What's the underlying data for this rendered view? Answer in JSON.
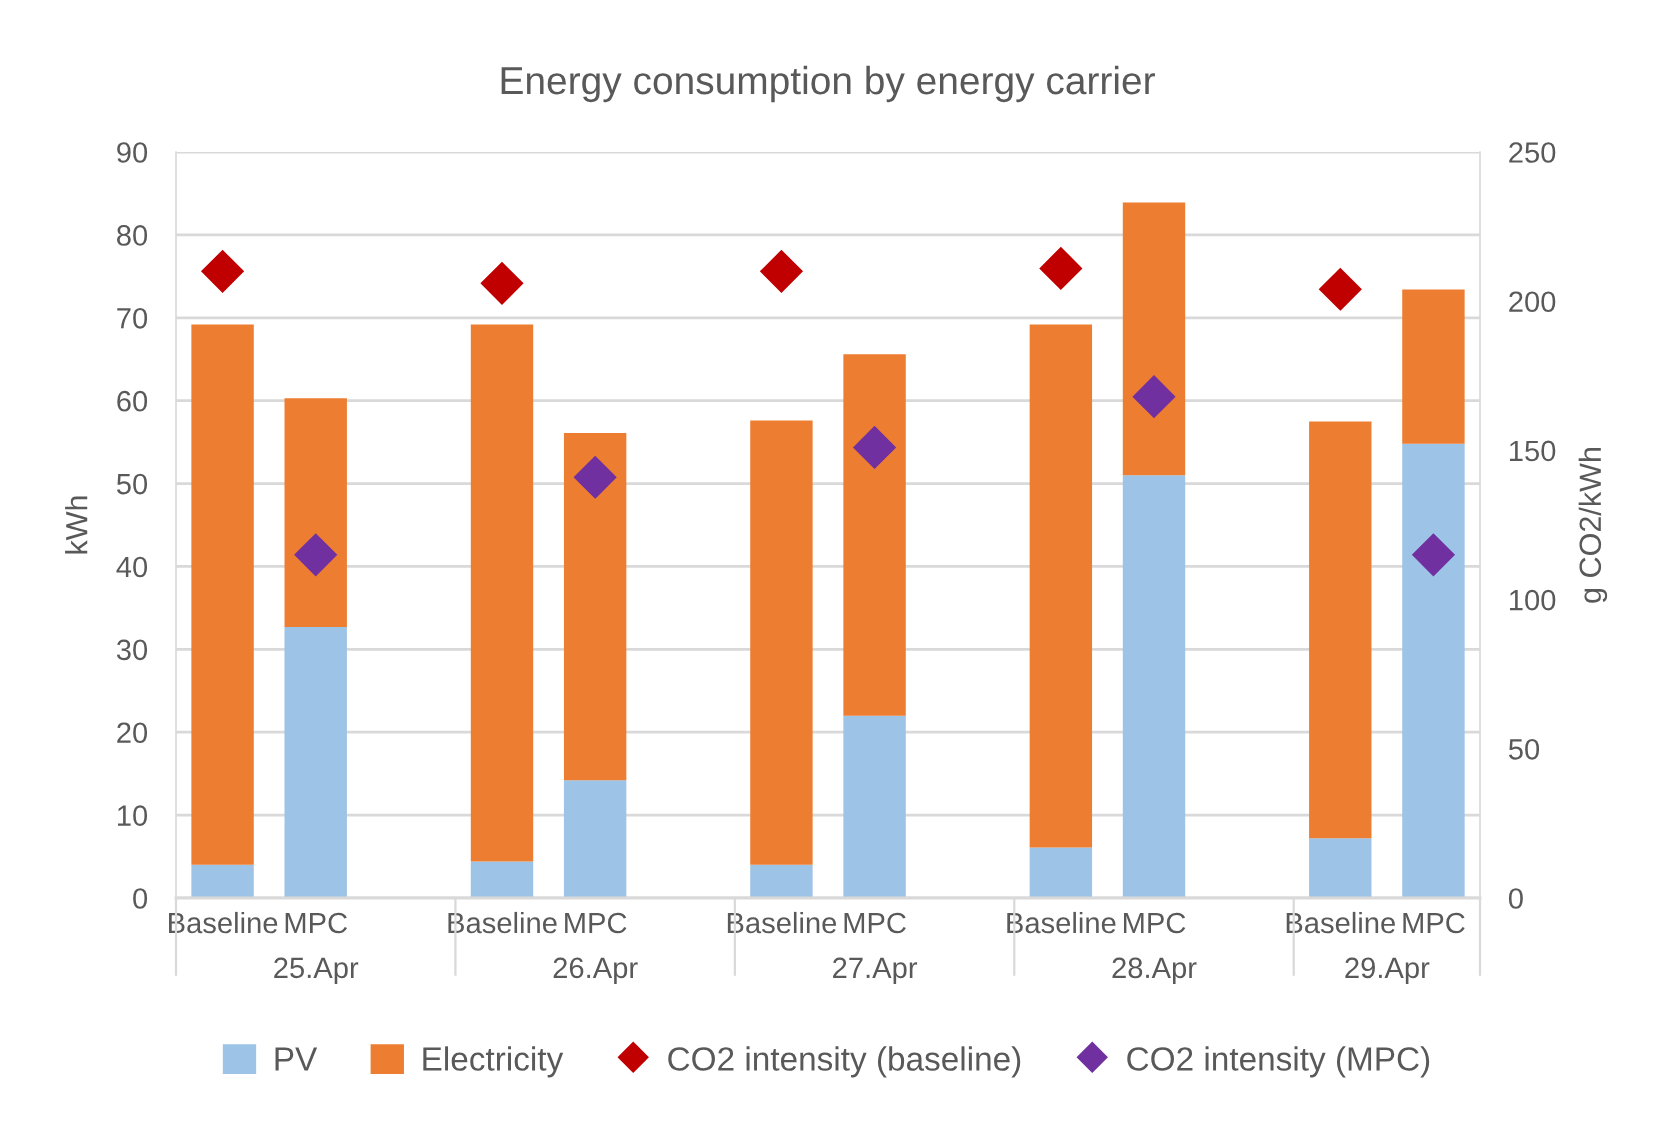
{
  "chart_data": {
    "type": "bar",
    "title": "Energy consumption by energy carrier",
    "ylabel": "kWh",
    "y2label": "g CO2/kWh",
    "categories": [
      "Baseline",
      "MPC",
      null,
      "Baseline",
      "MPC",
      null,
      "Baseline",
      "MPC",
      null,
      "Baseline",
      "MPC",
      null,
      "Baseline",
      "MPC"
    ],
    "series": [
      {
        "name": "PV",
        "color": "#9dc3e6",
        "values": [
          4.0,
          32.7,
          null,
          4.4,
          14.2,
          null,
          4.0,
          22.0,
          null,
          6.1,
          51.0,
          null,
          7.2,
          54.8
        ]
      },
      {
        "name": "Electricity",
        "color": "#ed7d31",
        "values": [
          65.2,
          27.6,
          null,
          64.8,
          41.9,
          null,
          53.6,
          43.6,
          null,
          63.1,
          32.9,
          null,
          50.3,
          18.6
        ]
      },
      {
        "name": "CO2 intensity (baseline)",
        "type": "scatter",
        "axis": "y2",
        "color": "#c00000",
        "values": [
          210,
          null,
          null,
          206,
          null,
          null,
          210,
          null,
          null,
          211,
          null,
          null,
          204,
          null
        ]
      },
      {
        "name": "CO2 intensity (MPC)",
        "type": "scatter",
        "axis": "y2",
        "color": "#7030a0",
        "values": [
          null,
          115,
          null,
          null,
          141,
          null,
          null,
          151,
          null,
          null,
          168,
          null,
          null,
          115
        ]
      }
    ],
    "stacked": true,
    "marker": "diamond",
    "ylim": [
      0,
      90
    ],
    "yticks": [
      0,
      10,
      20,
      30,
      40,
      50,
      60,
      70,
      80,
      90
    ],
    "y2lim": [
      0,
      250
    ],
    "y2ticks": [
      0,
      50,
      100,
      150,
      200,
      250
    ],
    "grid": "y",
    "legend": "bottom",
    "annotations": [
      "25.Apr",
      "26.Apr",
      "27.Apr",
      "28.Apr",
      "29.Apr"
    ]
  }
}
